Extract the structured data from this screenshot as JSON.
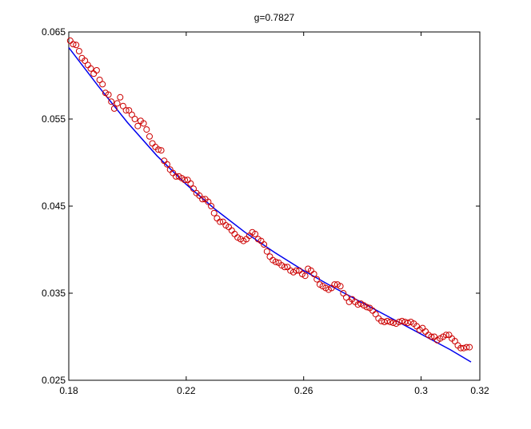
{
  "chart_data": {
    "type": "scatter",
    "title": "g=0.7827",
    "xlabel": "",
    "ylabel": "",
    "xlim": [
      0.18,
      0.32
    ],
    "ylim": [
      0.025,
      0.065
    ],
    "xticks": [
      0.18,
      0.22,
      0.26,
      0.3,
      0.32
    ],
    "xtick_labels": [
      "0.18",
      "0.22",
      "0.26",
      "0.3",
      "0.32"
    ],
    "yticks": [
      0.025,
      0.035,
      0.045,
      0.055,
      0.065
    ],
    "ytick_labels": [
      "0.025",
      "0.035",
      "0.045",
      "0.055",
      "0.065"
    ],
    "grid": false,
    "colors": {
      "points": "#cc0000",
      "fit": "#0000ee",
      "axes": "#000000"
    },
    "series": [
      {
        "kind": "points",
        "x": [
          0.1805,
          0.1815,
          0.1825,
          0.1835,
          0.1845,
          0.1855,
          0.1865,
          0.1875,
          0.1885,
          0.1895,
          0.1905,
          0.1915,
          0.1925,
          0.1935,
          0.1945,
          0.1955,
          0.1965,
          0.1975,
          0.1985,
          0.1995,
          0.2005,
          0.2015,
          0.2025,
          0.2035,
          0.2045,
          0.2055,
          0.2065,
          0.2075,
          0.2085,
          0.2095,
          0.2105,
          0.2115,
          0.2125,
          0.2135,
          0.2145,
          0.2155,
          0.2165,
          0.2175,
          0.2185,
          0.2195,
          0.2205,
          0.2215,
          0.2225,
          0.2235,
          0.2245,
          0.2255,
          0.2265,
          0.2275,
          0.2285,
          0.2295,
          0.2305,
          0.2315,
          0.2325,
          0.2335,
          0.2345,
          0.2355,
          0.2365,
          0.2375,
          0.2385,
          0.2395,
          0.2405,
          0.2415,
          0.2425,
          0.2435,
          0.2445,
          0.2455,
          0.2465,
          0.2475,
          0.2485,
          0.2495,
          0.2505,
          0.2515,
          0.2525,
          0.2535,
          0.2545,
          0.2555,
          0.2565,
          0.2575,
          0.2585,
          0.2595,
          0.2605,
          0.2615,
          0.2625,
          0.2635,
          0.2645,
          0.2655,
          0.2665,
          0.2675,
          0.2685,
          0.2695,
          0.2705,
          0.2715,
          0.2725,
          0.2735,
          0.2745,
          0.2755,
          0.2765,
          0.2775,
          0.2785,
          0.2795,
          0.2805,
          0.2815,
          0.2825,
          0.2835,
          0.2845,
          0.2855,
          0.2865,
          0.2875,
          0.2885,
          0.2895,
          0.2905,
          0.2915,
          0.2925,
          0.2935,
          0.2945,
          0.2955,
          0.2965,
          0.2975,
          0.2985,
          0.2995,
          0.3005,
          0.3015,
          0.3025,
          0.3035,
          0.3045,
          0.3055,
          0.3065,
          0.3075,
          0.3085,
          0.3095,
          0.3105,
          0.3115,
          0.3125,
          0.3135,
          0.3145,
          0.3155,
          0.3165
        ],
        "y": [
          0.064,
          0.0636,
          0.0635,
          0.0628,
          0.062,
          0.0617,
          0.0612,
          0.0608,
          0.0602,
          0.0606,
          0.0595,
          0.059,
          0.058,
          0.0578,
          0.057,
          0.0562,
          0.0568,
          0.0575,
          0.0565,
          0.056,
          0.056,
          0.0555,
          0.055,
          0.0542,
          0.0548,
          0.0545,
          0.0538,
          0.053,
          0.0522,
          0.0518,
          0.0515,
          0.0514,
          0.0502,
          0.0498,
          0.0492,
          0.0488,
          0.0484,
          0.0484,
          0.0482,
          0.048,
          0.048,
          0.0476,
          0.047,
          0.0465,
          0.0462,
          0.0458,
          0.0458,
          0.0455,
          0.045,
          0.0442,
          0.0436,
          0.0432,
          0.0432,
          0.0428,
          0.0426,
          0.0422,
          0.0418,
          0.0414,
          0.0412,
          0.041,
          0.0412,
          0.0416,
          0.042,
          0.0418,
          0.0412,
          0.041,
          0.0406,
          0.0398,
          0.0392,
          0.0388,
          0.0386,
          0.0385,
          0.0382,
          0.038,
          0.038,
          0.0376,
          0.0374,
          0.0376,
          0.0376,
          0.0372,
          0.037,
          0.0378,
          0.0376,
          0.0372,
          0.0366,
          0.036,
          0.0358,
          0.0356,
          0.0354,
          0.0356,
          0.036,
          0.036,
          0.0358,
          0.035,
          0.0345,
          0.034,
          0.0343,
          0.034,
          0.0337,
          0.0338,
          0.0336,
          0.0334,
          0.0333,
          0.033,
          0.0326,
          0.0321,
          0.0318,
          0.0317,
          0.0318,
          0.0317,
          0.0316,
          0.0315,
          0.0317,
          0.0318,
          0.0317,
          0.0316,
          0.0317,
          0.0315,
          0.0312,
          0.0308,
          0.031,
          0.0306,
          0.0302,
          0.03,
          0.03,
          0.0296,
          0.0298,
          0.03,
          0.0302,
          0.0302,
          0.0298,
          0.0295,
          0.029,
          0.0287,
          0.0287,
          0.0288,
          0.0288
        ]
      },
      {
        "kind": "fit",
        "x": [
          0.18,
          0.19,
          0.2,
          0.21,
          0.22,
          0.23,
          0.24,
          0.25,
          0.26,
          0.27,
          0.28,
          0.29,
          0.3,
          0.31,
          0.317
        ],
        "y": [
          0.0632,
          0.0588,
          0.0546,
          0.0508,
          0.0475,
          0.0446,
          0.042,
          0.0397,
          0.0376,
          0.0357,
          0.0339,
          0.0321,
          0.0303,
          0.0285,
          0.0271
        ]
      }
    ]
  }
}
